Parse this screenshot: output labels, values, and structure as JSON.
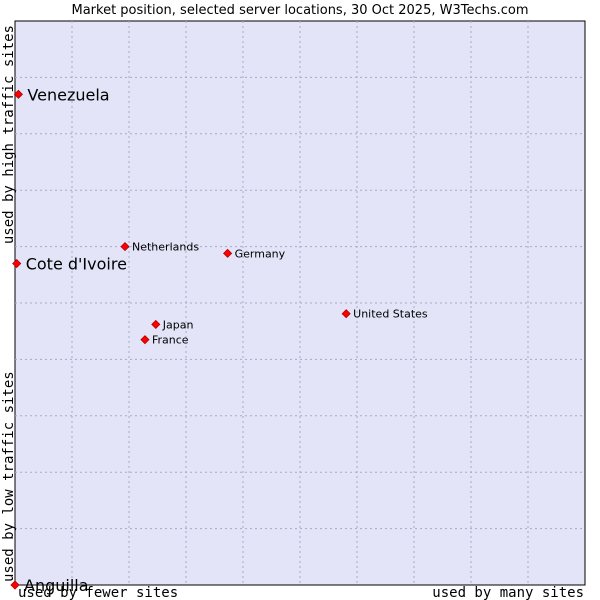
{
  "chart_data": {
    "type": "scatter",
    "title": "Market position, selected server locations, 30 Oct 2025, W3Techs.com",
    "xlabel_left": "used by fewer sites",
    "xlabel_right": "used by many sites",
    "ylabel_bottom": "used by low traffic sites",
    "ylabel_top": "used by high traffic sites",
    "xlim": [
      0,
      10
    ],
    "ylim": [
      0,
      10
    ],
    "grid": true,
    "colors": {
      "plot_bg": "#e3e4f8",
      "grid": "#a7a9c8",
      "marker": "#ff0000",
      "marker_edge": "#b00000"
    },
    "points": [
      {
        "label": "Venezuela",
        "x": 0.06,
        "y": 8.7,
        "emphasis": true
      },
      {
        "label": "Cote d'Ivoire",
        "x": 0.03,
        "y": 5.7,
        "emphasis": true
      },
      {
        "label": "Anguilla",
        "x": 0.0,
        "y": 0.0,
        "emphasis": true
      },
      {
        "label": "Netherlands",
        "x": 1.93,
        "y": 6.0,
        "emphasis": false
      },
      {
        "label": "Germany",
        "x": 3.73,
        "y": 5.88,
        "emphasis": false
      },
      {
        "label": "United States",
        "x": 5.81,
        "y": 4.81,
        "emphasis": false
      },
      {
        "label": "Japan",
        "x": 2.47,
        "y": 4.62,
        "emphasis": false
      },
      {
        "label": "France",
        "x": 2.28,
        "y": 4.35,
        "emphasis": false
      }
    ]
  }
}
